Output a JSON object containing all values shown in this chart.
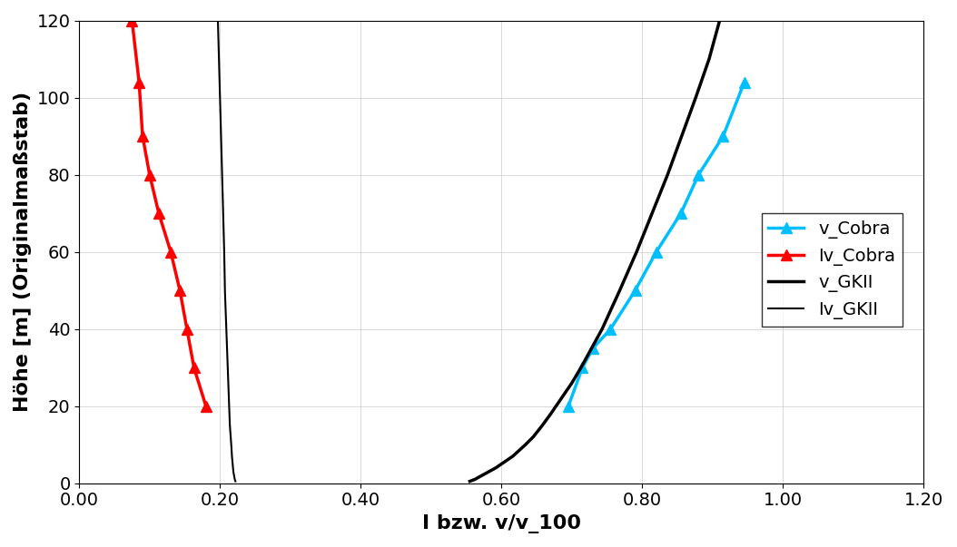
{
  "title": "",
  "xlabel": "I bzw. v/v_100",
  "ylabel": "Höhe [m] (Originalmaßstab)",
  "xlim": [
    0.0,
    1.2
  ],
  "ylim": [
    0,
    120
  ],
  "xticks": [
    0.0,
    0.2,
    0.4,
    0.6,
    0.8,
    1.0,
    1.2
  ],
  "yticks": [
    0,
    20,
    40,
    60,
    80,
    100,
    120
  ],
  "v_cobra_x": [
    0.695,
    0.715,
    0.73,
    0.755,
    0.79,
    0.82,
    0.855,
    0.88,
    0.915,
    0.945
  ],
  "v_cobra_y": [
    20,
    30,
    35,
    40,
    50,
    60,
    70,
    80,
    90,
    104
  ],
  "Iv_cobra_x": [
    0.075,
    0.085,
    0.09,
    0.1,
    0.113,
    0.13,
    0.143,
    0.153,
    0.163,
    0.18
  ],
  "Iv_cobra_y": [
    120,
    104,
    90,
    80,
    70,
    60,
    50,
    40,
    30,
    20
  ],
  "v_GKII_y": [
    0.5,
    1,
    2,
    3,
    4,
    5,
    6,
    7,
    8,
    10,
    12,
    15,
    18,
    22,
    26,
    30,
    35,
    40,
    50,
    60,
    70,
    80,
    90,
    100,
    110,
    120
  ],
  "v_GKII_x": [
    0.555,
    0.562,
    0.572,
    0.582,
    0.592,
    0.6,
    0.608,
    0.616,
    0.622,
    0.634,
    0.645,
    0.658,
    0.67,
    0.685,
    0.7,
    0.713,
    0.728,
    0.743,
    0.768,
    0.792,
    0.814,
    0.836,
    0.856,
    0.876,
    0.895,
    0.91
  ],
  "Iv_GKII_y": [
    0.5,
    1,
    2,
    3,
    5,
    7,
    10,
    15,
    20,
    25,
    30,
    40,
    50,
    60,
    80,
    100,
    120
  ],
  "Iv_GKII_x": [
    0.222,
    0.221,
    0.22,
    0.219,
    0.218,
    0.217,
    0.216,
    0.214,
    0.213,
    0.212,
    0.211,
    0.209,
    0.207,
    0.206,
    0.203,
    0.2,
    0.197
  ],
  "v_cobra_color": "#00BFFF",
  "Iv_cobra_color": "#FF0000",
  "v_GKII_color": "#000000",
  "Iv_GKII_color": "#000000",
  "v_GKII_linewidth": 2.5,
  "Iv_GKII_linewidth": 1.5,
  "legend_labels": [
    "v_Cobra",
    "Iv_Cobra",
    "v_GKII",
    "Iv_GKII"
  ],
  "xlabel_fontsize": 16,
  "ylabel_fontsize": 16,
  "tick_fontsize": 14,
  "legend_fontsize": 14
}
